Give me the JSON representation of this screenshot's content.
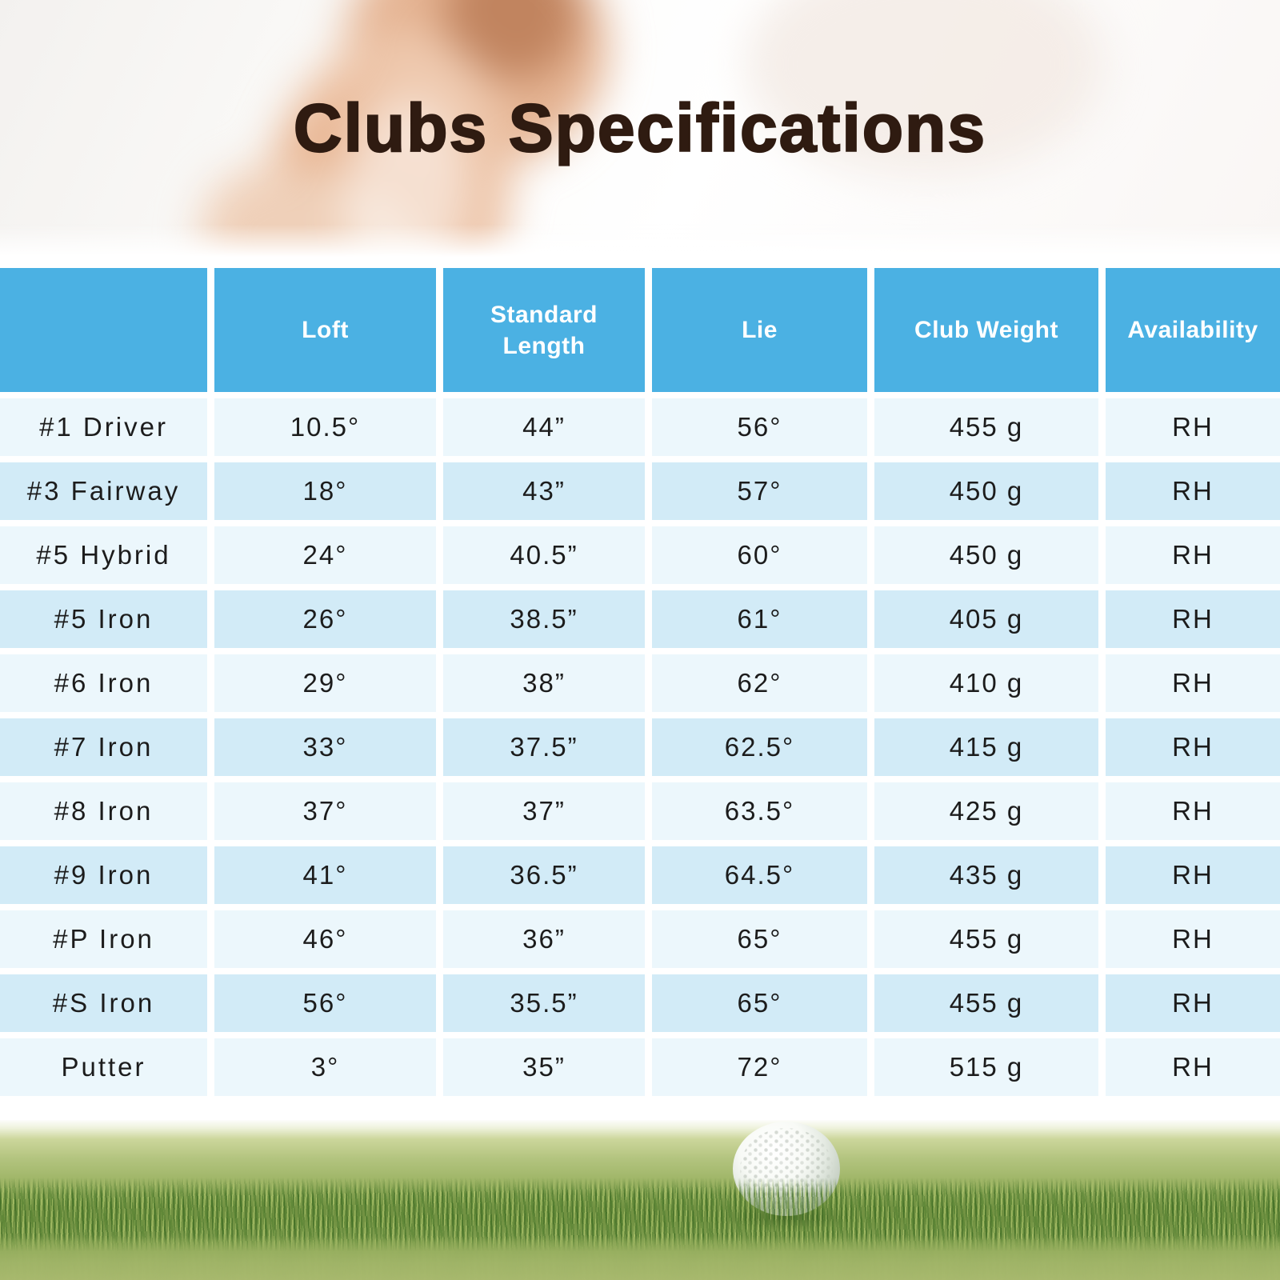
{
  "title": "Clubs Specifications",
  "table": {
    "columns": [
      "",
      "Loft",
      "Standard Length",
      "Lie",
      "Club Weight",
      "Availability"
    ],
    "rows": [
      [
        "#1 Driver",
        "10.5°",
        "44”",
        "56°",
        "455 g",
        "RH"
      ],
      [
        "#3 Fairway",
        "18°",
        "43”",
        "57°",
        "450 g",
        "RH"
      ],
      [
        "#5 Hybrid",
        "24°",
        "40.5”",
        "60°",
        "450 g",
        "RH"
      ],
      [
        "#5 Iron",
        "26°",
        "38.5”",
        "61°",
        "405 g",
        "RH"
      ],
      [
        "#6 Iron",
        "29°",
        "38”",
        "62°",
        "410 g",
        "RH"
      ],
      [
        "#7 Iron",
        "33°",
        "37.5”",
        "62.5°",
        "415 g",
        "RH"
      ],
      [
        "#8 Iron",
        "37°",
        "37”",
        "63.5°",
        "425 g",
        "RH"
      ],
      [
        "#9 Iron",
        "41°",
        "36.5”",
        "64.5°",
        "435 g",
        "RH"
      ],
      [
        "#P Iron",
        "46°",
        "36”",
        "65°",
        "455 g",
        "RH"
      ],
      [
        "#S Iron",
        "56°",
        "35.5”",
        "65°",
        "455 g",
        "RH"
      ],
      [
        "Putter",
        "3°",
        "35”",
        "72°",
        "515 g",
        "RH"
      ]
    ]
  },
  "colors": {
    "header_blue": "#4BB1E3",
    "row_light": "#ECF7FC",
    "row_blue": "#D2EBF7",
    "title_brown": "#2F1B11",
    "grass_green": "#8AA854"
  }
}
